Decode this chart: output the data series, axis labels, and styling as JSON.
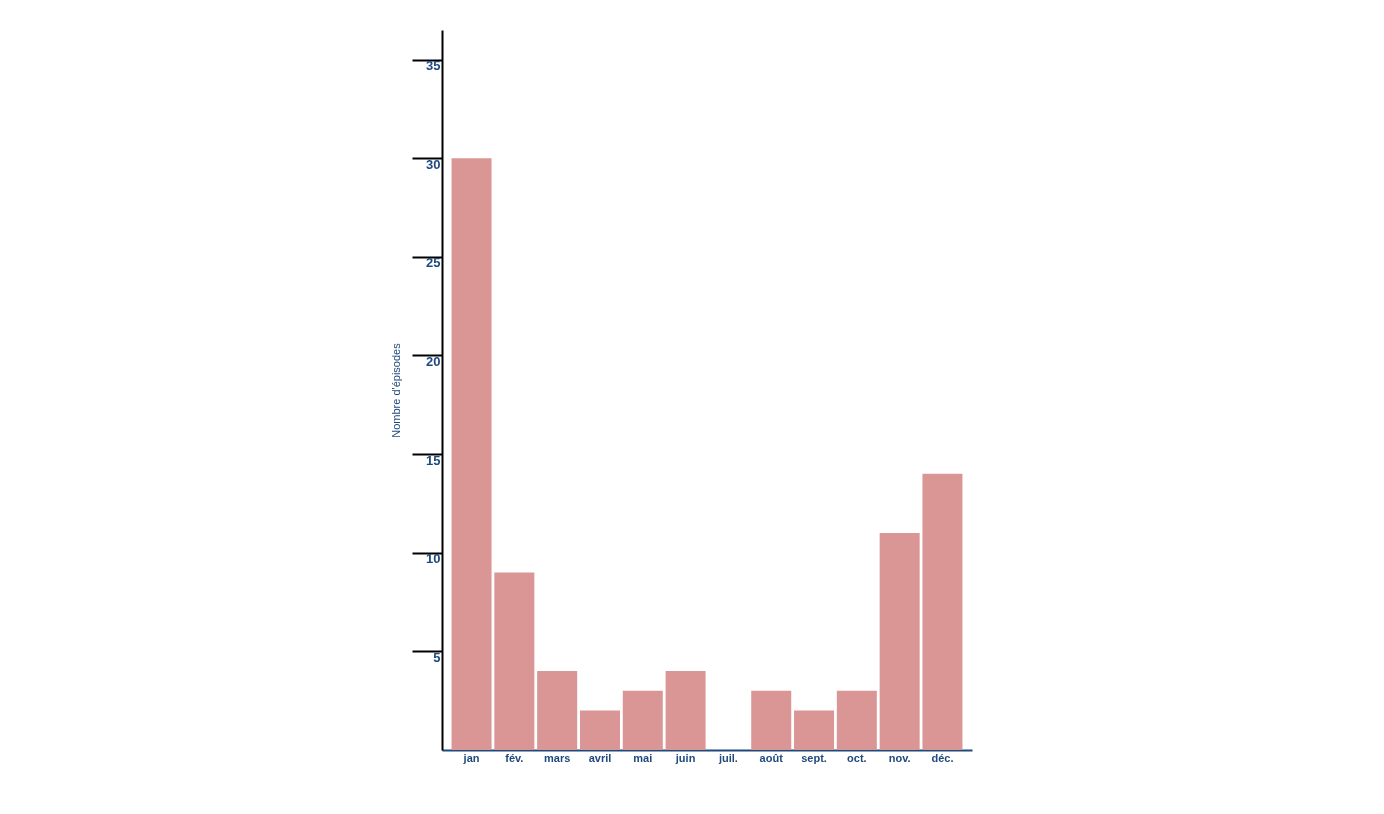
{
  "chart_data": {
    "type": "bar",
    "ylabel": "Nombre d'épisodes",
    "categories": [
      "jan",
      "fév.",
      "mars",
      "avril",
      "mai",
      "juin",
      "juil.",
      "août",
      "sept.",
      "oct.",
      "nov.",
      "déc."
    ],
    "values": [
      30,
      9,
      4,
      2,
      3,
      4,
      0,
      3,
      2,
      3,
      11,
      14
    ],
    "color": "#d99694",
    "ylim": [
      0,
      36.5
    ],
    "yticks": [
      5,
      10,
      15,
      20,
      25,
      30,
      35
    ],
    "grid": false
  }
}
